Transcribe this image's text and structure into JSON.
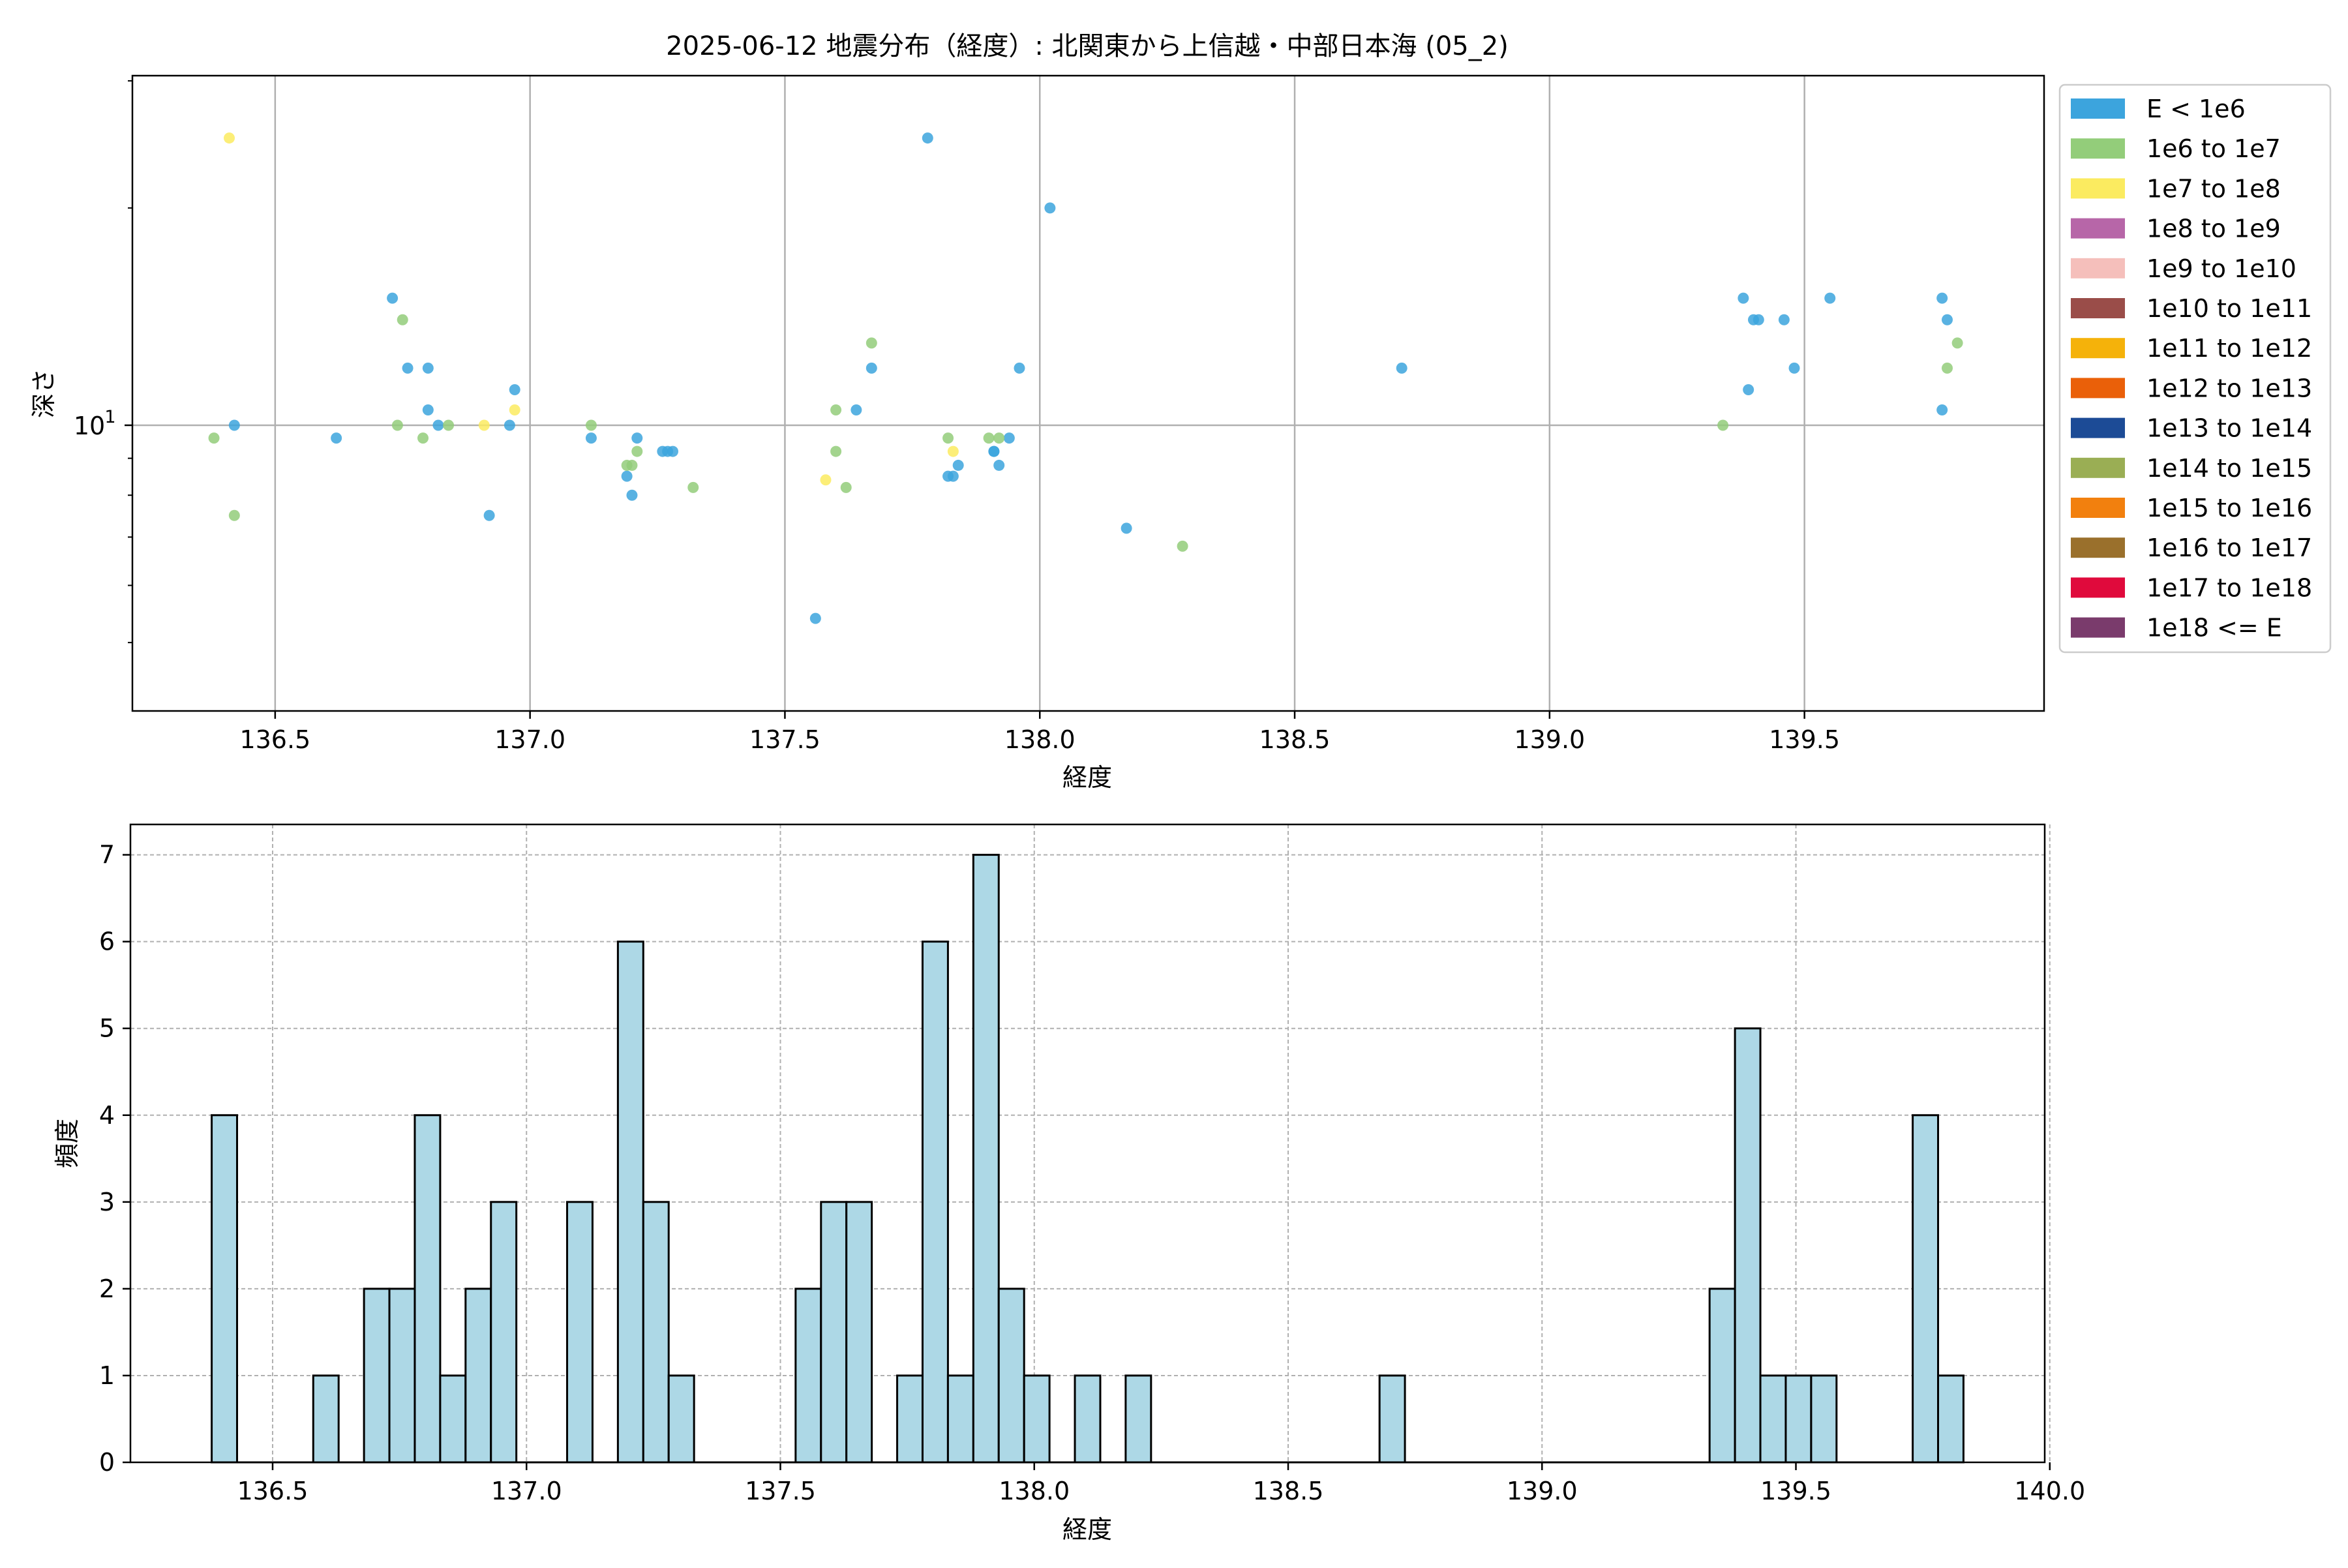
{
  "chart_data": [
    {
      "type": "scatter",
      "title": "2025-06-12 地震分布（経度）: 北関東から上信越・中部日本海 (05_2)",
      "xlabel": "経度",
      "ylabel": "深さ",
      "xlim": [
        136.22,
        139.97
      ],
      "ylim": [
        4.02,
        30.5
      ],
      "yscale": "log",
      "grid": true,
      "x_ticks": [
        136.5,
        137.0,
        137.5,
        138.0,
        138.5,
        139.0,
        139.5
      ],
      "x_tick_labels": [
        "136.5",
        "137.0",
        "137.5",
        "138.0",
        "138.5",
        "139.0",
        "139.5"
      ],
      "y_ticks": [
        10
      ],
      "y_tick_labels": [
        "10"
      ],
      "y_tick_label_exponent": "1",
      "y_tick_label_base": "10",
      "legend_position": "outside-right",
      "legend": [
        {
          "label": "E < 1e6",
          "color": "#3ca4dd"
        },
        {
          "label": "1e6 to 1e7",
          "color": "#93cd7a"
        },
        {
          "label": "1e7 to 1e8",
          "color": "#fbeb60"
        },
        {
          "label": "1e8 to 1e9",
          "color": "#b766a8"
        },
        {
          "label": "1e9 to 1e10",
          "color": "#f5bfbb"
        },
        {
          "label": "1e10 to 1e11",
          "color": "#9a4d49"
        },
        {
          "label": "1e11 to 1e12",
          "color": "#f5b20a"
        },
        {
          "label": "1e12 to 1e13",
          "color": "#ea6009"
        },
        {
          "label": "1e13 to 1e14",
          "color": "#1c4b96"
        },
        {
          "label": "1e14 to 1e15",
          "color": "#9aae54"
        },
        {
          "label": "1e15 to 1e16",
          "color": "#f2800e"
        },
        {
          "label": "1e16 to 1e17",
          "color": "#9a702c"
        },
        {
          "label": "1e17 to 1e18",
          "color": "#e00a3c"
        },
        {
          "label": "1e18 <= E",
          "color": "#7a3b6c"
        }
      ],
      "series": [
        {
          "color": "#3ca4dd",
          "points": [
            [
              136.42,
              10
            ],
            [
              136.62,
              9.6
            ],
            [
              136.73,
              15
            ],
            [
              136.76,
              12
            ],
            [
              136.8,
              12
            ],
            [
              136.8,
              10.5
            ],
            [
              136.82,
              10
            ],
            [
              136.92,
              7.5
            ],
            [
              136.96,
              10
            ],
            [
              136.97,
              11.2
            ],
            [
              137.12,
              9.6
            ],
            [
              137.19,
              8.5
            ],
            [
              137.2,
              8.0
            ],
            [
              137.21,
              9.6
            ],
            [
              137.26,
              9.2
            ],
            [
              137.27,
              9.2
            ],
            [
              137.28,
              9.2
            ],
            [
              137.56,
              5.4
            ],
            [
              137.64,
              10.5
            ],
            [
              137.67,
              12
            ],
            [
              137.78,
              25
            ],
            [
              137.82,
              8.5
            ],
            [
              137.83,
              8.5
            ],
            [
              137.84,
              8.8
            ],
            [
              137.91,
              9.2
            ],
            [
              137.91,
              9.2
            ],
            [
              137.92,
              8.8
            ],
            [
              137.94,
              9.6
            ],
            [
              137.96,
              12
            ],
            [
              138.02,
              20
            ],
            [
              138.17,
              7.2
            ],
            [
              138.71,
              12
            ],
            [
              139.38,
              15
            ],
            [
              139.39,
              11.2
            ],
            [
              139.4,
              14
            ],
            [
              139.41,
              14
            ],
            [
              139.46,
              14
            ],
            [
              139.48,
              12
            ],
            [
              139.55,
              15
            ],
            [
              139.77,
              15
            ],
            [
              139.77,
              10.5
            ],
            [
              139.78,
              14
            ]
          ]
        },
        {
          "color": "#93cd7a",
          "points": [
            [
              136.38,
              9.6
            ],
            [
              136.42,
              7.5
            ],
            [
              136.74,
              10
            ],
            [
              136.75,
              14
            ],
            [
              136.79,
              9.6
            ],
            [
              136.84,
              10
            ],
            [
              137.12,
              10
            ],
            [
              137.19,
              8.8
            ],
            [
              137.2,
              8.8
            ],
            [
              137.21,
              9.2
            ],
            [
              137.32,
              8.2
            ],
            [
              137.6,
              9.2
            ],
            [
              137.6,
              10.5
            ],
            [
              137.62,
              8.2
            ],
            [
              137.67,
              13
            ],
            [
              137.82,
              9.6
            ],
            [
              137.9,
              9.6
            ],
            [
              137.92,
              9.6
            ],
            [
              138.28,
              6.8
            ],
            [
              139.34,
              10
            ],
            [
              139.78,
              12
            ],
            [
              139.8,
              13
            ]
          ]
        },
        {
          "color": "#fbeb60",
          "points": [
            [
              136.41,
              25
            ],
            [
              136.91,
              10
            ],
            [
              136.97,
              10.5
            ],
            [
              137.58,
              8.4
            ],
            [
              137.83,
              9.2
            ]
          ]
        }
      ]
    },
    {
      "type": "bar",
      "subtype": "histogram",
      "xlabel": "経度",
      "ylabel": "頻度",
      "xlim": [
        136.22,
        139.99
      ],
      "ylim": [
        0,
        7.35
      ],
      "grid": true,
      "bar_color": "#add8e6",
      "bin_start": 136.38,
      "bin_width": 0.05,
      "x_ticks": [
        136.5,
        137.0,
        137.5,
        138.0,
        138.5,
        139.0,
        139.5,
        140.0
      ],
      "x_tick_labels": [
        "136.5",
        "137.0",
        "137.5",
        "138.0",
        "138.5",
        "139.0",
        "139.5",
        "140.0"
      ],
      "y_ticks": [
        0,
        1,
        2,
        3,
        4,
        5,
        6,
        7
      ],
      "y_tick_labels": [
        "0",
        "1",
        "2",
        "3",
        "4",
        "5",
        "6",
        "7"
      ],
      "values": [
        4,
        0,
        0,
        0,
        1,
        0,
        2,
        2,
        4,
        1,
        2,
        3,
        0,
        0,
        3,
        0,
        6,
        3,
        1,
        0,
        0,
        0,
        0,
        2,
        3,
        3,
        0,
        1,
        6,
        1,
        7,
        2,
        1,
        0,
        1,
        0,
        1,
        0,
        0,
        0,
        0,
        0,
        0,
        0,
        0,
        0,
        1,
        0,
        0,
        0,
        0,
        0,
        0,
        0,
        0,
        0,
        0,
        0,
        0,
        2,
        5,
        1,
        1,
        1,
        0,
        0,
        0,
        4,
        1
      ]
    }
  ]
}
